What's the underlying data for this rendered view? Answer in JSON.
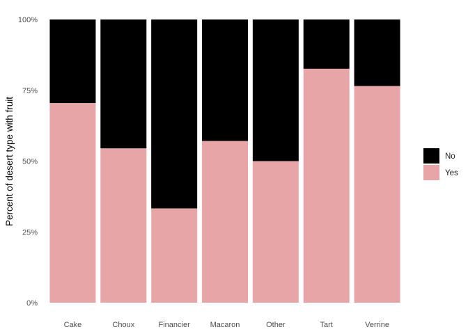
{
  "chart_data": {
    "type": "bar",
    "stacked": true,
    "normalized": true,
    "categories": [
      "Cake",
      "Choux",
      "Financier",
      "Macaron",
      "Other",
      "Tart",
      "Verrine"
    ],
    "series": [
      {
        "name": "Yes",
        "values": [
          0.705,
          0.545,
          0.333,
          0.571,
          0.5,
          0.826,
          0.765
        ],
        "color": "#e8a5a7"
      },
      {
        "name": "No",
        "values": [
          0.295,
          0.455,
          0.667,
          0.429,
          0.5,
          0.174,
          0.235
        ],
        "color": "#000000"
      }
    ],
    "ylabel": "Percent of desert type with fruit",
    "xlabel": "",
    "ylim": [
      0,
      1
    ],
    "yticks": [
      "0%",
      "25%",
      "50%",
      "75%",
      "100%"
    ],
    "grid": false,
    "legend": {
      "placement": "right",
      "entries": [
        "No",
        "Yes"
      ]
    }
  }
}
